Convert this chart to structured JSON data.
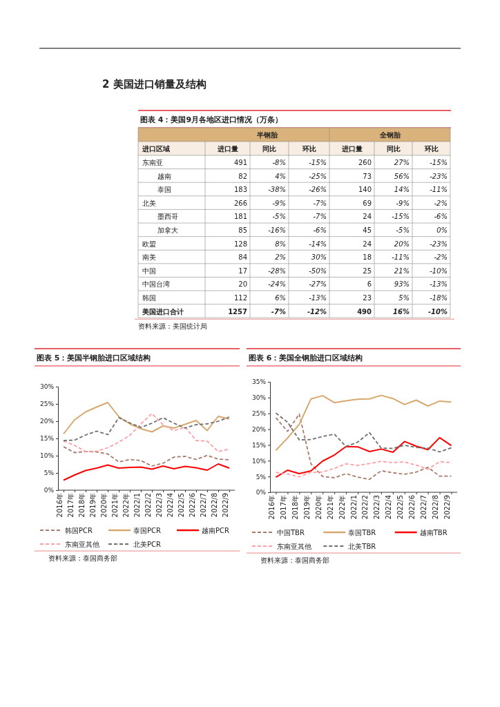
{
  "chart_data": [
    {
      "type": "other",
      "title": "图表 4：美国9月各地区进口情况（万条）",
      "ylabel": "进口区域",
      "annotations": [
        "2 美国进口销量及结构",
        "半钢胎",
        "全钢胎",
        "资料来源：美国统计局"
      ],
      "categories": [
        "进口量",
        "同比",
        "环比",
        "进口量",
        "同比",
        "环比"
      ],
      "y_categories": [
        "东南亚",
        "越南",
        "泰国",
        "北美",
        "墨西哥",
        "加拿大",
        "欧盟",
        "南美",
        "中国",
        "中国台湾",
        "韩国",
        "美国进口合计"
      ],
      "cell_labels": [
        [
          "491",
          "-8%",
          "-15%",
          "260",
          "27%",
          "-15%"
        ],
        [
          "82",
          "4%",
          "-25%",
          "73",
          "56%",
          "-23%"
        ],
        [
          "183",
          "-38%",
          "-26%",
          "140",
          "14%",
          "-11%"
        ],
        [
          "266",
          "-9%",
          "-7%",
          "69",
          "-9%",
          "-2%"
        ],
        [
          "181",
          "-5%",
          "-7%",
          "24",
          "-15%",
          "-6%"
        ],
        [
          "85",
          "-16%",
          "-6%",
          "45",
          "-5%",
          "0%"
        ],
        [
          "128",
          "8%",
          "-14%",
          "24",
          "20%",
          "-23%"
        ],
        [
          "84",
          "2%",
          "30%",
          "18",
          "-11%",
          "-2%"
        ],
        [
          "17",
          "-28%",
          "-50%",
          "25",
          "21%",
          "-10%"
        ],
        [
          "20",
          "-24%",
          "-27%",
          "6",
          "93%",
          "-13%"
        ],
        [
          "112",
          "6%",
          "-13%",
          "23",
          "5%",
          "-18%"
        ],
        [
          "1257",
          "-7%",
          "-12%",
          "490",
          "16%",
          "-10%"
        ]
      ]
    },
    {
      "type": "line",
      "title": "图表 5：美国半钢胎进口区域结构",
      "annotations": [
        "资料来源：泰国商务部"
      ],
      "categories": [
        "2016年",
        "2017年",
        "2018年",
        "2019年",
        "2020年",
        "2021年",
        "2022年",
        "2022/1",
        "2022/2",
        "2022/3",
        "2022/4",
        "2022/5",
        "2022/6",
        "2022/7",
        "2022/8",
        "2022/9"
      ],
      "ylim": [
        0,
        30
      ],
      "yticks": [
        {
          "value": 0,
          "label": "0%"
        },
        {
          "value": 5,
          "label": "5%"
        },
        {
          "value": 10,
          "label": "10%"
        },
        {
          "value": 15,
          "label": "15%"
        },
        {
          "value": 20,
          "label": "20%"
        },
        {
          "value": 25,
          "label": "25%"
        },
        {
          "value": 30,
          "label": "30%"
        }
      ],
      "grid": false,
      "legend": "bottom",
      "series": [
        {
          "name": "韩国PCR",
          "color": "#a97a6c",
          "line_style": "dashed",
          "values": [
            12.6,
            10.9,
            11.2,
            11.1,
            10.5,
            8.2,
            8.9,
            8.6,
            7.0,
            7.8,
            9.6,
            9.8,
            8.9,
            10.1,
            9.0,
            8.8
          ]
        },
        {
          "name": "泰国PCR",
          "color": "#d6a86e",
          "line_style": "solid",
          "values": [
            16.3,
            20.4,
            22.7,
            24.1,
            25.4,
            21.3,
            19.2,
            17.8,
            16.9,
            18.6,
            18.0,
            19.1,
            20.2,
            17.3,
            21.4,
            20.6
          ]
        },
        {
          "name": "越南PCR",
          "color": "#ff0000",
          "line_style": "solid",
          "values": [
            2.9,
            4.4,
            5.7,
            6.4,
            7.3,
            6.4,
            6.6,
            6.7,
            6.1,
            7.0,
            6.2,
            6.9,
            6.5,
            5.8,
            7.6,
            6.4
          ]
        },
        {
          "name": "东南亚其他",
          "color": "#ff9ea3",
          "line_style": "dashed",
          "values": [
            14.2,
            13.0,
            11.2,
            11.3,
            12.3,
            13.9,
            15.9,
            19.2,
            22.2,
            19.0,
            17.2,
            18.3,
            14.4,
            14.2,
            11.2,
            11.9
          ]
        },
        {
          "name": "北美PCR",
          "color": "#6e6e6e",
          "line_style": "dashed",
          "values": [
            14.4,
            14.5,
            16.0,
            17.1,
            16.1,
            21.0,
            19.5,
            18.2,
            19.4,
            21.0,
            19.4,
            18.0,
            19.0,
            19.2,
            20.0,
            21.2
          ]
        }
      ]
    },
    {
      "type": "line",
      "title": "图表 6：美国全钢胎进口区域结构",
      "annotations": [
        "资料来源：泰国商务部"
      ],
      "categories": [
        "2016年",
        "2017年",
        "2018年",
        "2019年",
        "2020年",
        "2021年",
        "2022年",
        "2022/1",
        "2022/2",
        "2022/3",
        "2022/4",
        "2022/5",
        "2022/6",
        "2022/7",
        "2022/8",
        "2022/9"
      ],
      "ylim": [
        0,
        35
      ],
      "yticks": [
        {
          "value": 0,
          "label": "0%"
        },
        {
          "value": 5,
          "label": "5%"
        },
        {
          "value": 10,
          "label": "10%"
        },
        {
          "value": 15,
          "label": "15%"
        },
        {
          "value": 20,
          "label": "20%"
        },
        {
          "value": 25,
          "label": "25%"
        },
        {
          "value": 30,
          "label": "30%"
        },
        {
          "value": 35,
          "label": "35%"
        }
      ],
      "grid": false,
      "legend": "bottom",
      "series": [
        {
          "name": "中国TBR",
          "color": "#a97a6c",
          "line_style": "dashed",
          "values": [
            23.6,
            19.3,
            24.8,
            9.0,
            5.0,
            4.6,
            5.9,
            4.8,
            4.1,
            6.8,
            6.2,
            5.7,
            6.4,
            7.9,
            5.1,
            5.1
          ]
        },
        {
          "name": "泰国TBR",
          "color": "#d6a86e",
          "line_style": "solid",
          "values": [
            13.3,
            17.2,
            21.5,
            29.6,
            30.6,
            28.4,
            29.0,
            29.5,
            29.6,
            30.7,
            29.7,
            27.8,
            29.2,
            27.3,
            28.9,
            28.6
          ]
        },
        {
          "name": "越南TBR",
          "color": "#ff0000",
          "line_style": "solid",
          "values": [
            4.8,
            7.0,
            5.9,
            6.8,
            9.9,
            11.8,
            14.5,
            14.4,
            12.9,
            13.7,
            12.7,
            16.1,
            14.6,
            13.5,
            17.3,
            14.8
          ]
        },
        {
          "name": "东南亚其他",
          "color": "#ff9ea3",
          "line_style": "dashed",
          "values": [
            6.3,
            5.8,
            4.9,
            6.3,
            6.4,
            7.6,
            9.0,
            8.5,
            9.1,
            9.8,
            9.4,
            9.6,
            8.6,
            7.3,
            9.7,
            9.4
          ]
        },
        {
          "name": "北美TBR",
          "color": "#6e6e6e",
          "line_style": "dashed",
          "values": [
            25.1,
            22.2,
            16.6,
            16.7,
            17.7,
            18.4,
            14.5,
            15.9,
            18.9,
            14.0,
            13.9,
            14.9,
            14.2,
            14.0,
            12.8,
            14.1
          ]
        }
      ]
    }
  ]
}
